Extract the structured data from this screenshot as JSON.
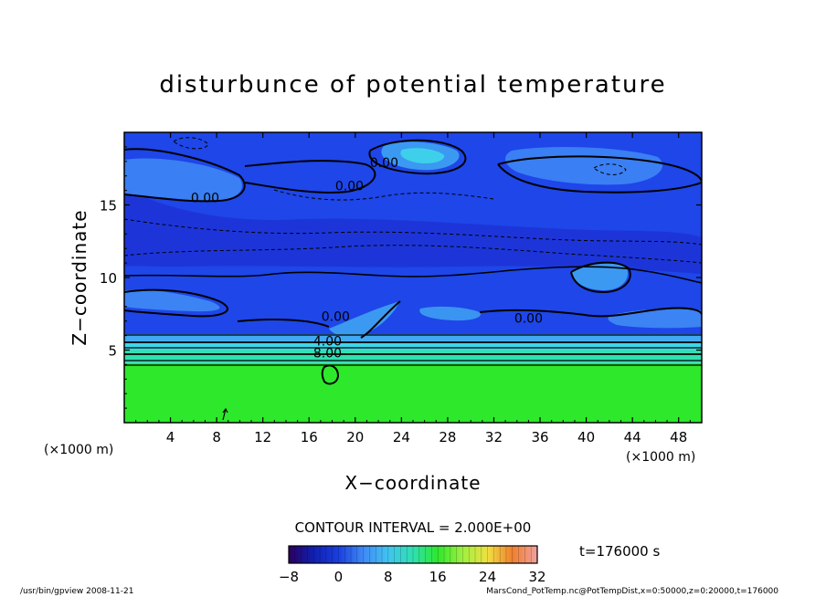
{
  "chart_data": {
    "type": "heatmap",
    "title": "disturbunce of potential temperature",
    "xlabel": "X−coordinate",
    "ylabel": "Z−coordinate",
    "x_unit": "(×1000 m)",
    "y_unit": "(×1000 m)",
    "xlim": [
      0,
      50
    ],
    "ylim": [
      0,
      20
    ],
    "x_ticks": [
      4,
      8,
      12,
      16,
      20,
      24,
      28,
      32,
      36,
      40,
      44,
      48
    ],
    "y_ticks": [
      5,
      10,
      15
    ],
    "contour_interval_label": "CONTOUR INTERVAL = 2.000E+00",
    "time_label": "t=176000 s",
    "colorbar": {
      "min": -8,
      "max": 32,
      "tick_labels": [
        "−8",
        "0",
        "8",
        "16",
        "24",
        "32"
      ],
      "tick_values": [
        -8,
        0,
        8,
        16,
        24,
        32
      ]
    },
    "contour_labels": [
      {
        "text": "0.00",
        "x": 7,
        "z": 15.2
      },
      {
        "text": "0.00",
        "x": 19.5,
        "z": 16
      },
      {
        "text": "0.00",
        "x": 22.5,
        "z": 17.6
      },
      {
        "text": "0.00",
        "x": 18.3,
        "z": 7
      },
      {
        "text": "0.00",
        "x": 35,
        "z": 6.9
      },
      {
        "text": "4.00",
        "x": 17.6,
        "z": 5.3
      },
      {
        "text": "8.00",
        "x": 17.6,
        "z": 4.5
      }
    ],
    "layers": [
      {
        "z_from": 0,
        "z_to": 4.1,
        "value": 14
      },
      {
        "z_from": 4.1,
        "z_to": 5.0,
        "value": 10
      },
      {
        "z_from": 5.0,
        "z_to": 5.6,
        "value": 6
      },
      {
        "z_from": 5.6,
        "z_to": 6.1,
        "value": 3
      },
      {
        "z_from": 6.1,
        "z_to": 20,
        "value": -1
      }
    ]
  },
  "footer": {
    "left": "/usr/bin/gpview   2008-11-21",
    "right": "MarsCond_PotTemp.nc@PotTempDist,x=0:50000,z=0:20000,t=176000"
  },
  "colors": {
    "deep_blue": "#1a3ee0",
    "mid_blue": "#2f6cf0",
    "light_blue": "#41a8f2",
    "cyan": "#3fd6ea",
    "green": "#2ee82c"
  }
}
